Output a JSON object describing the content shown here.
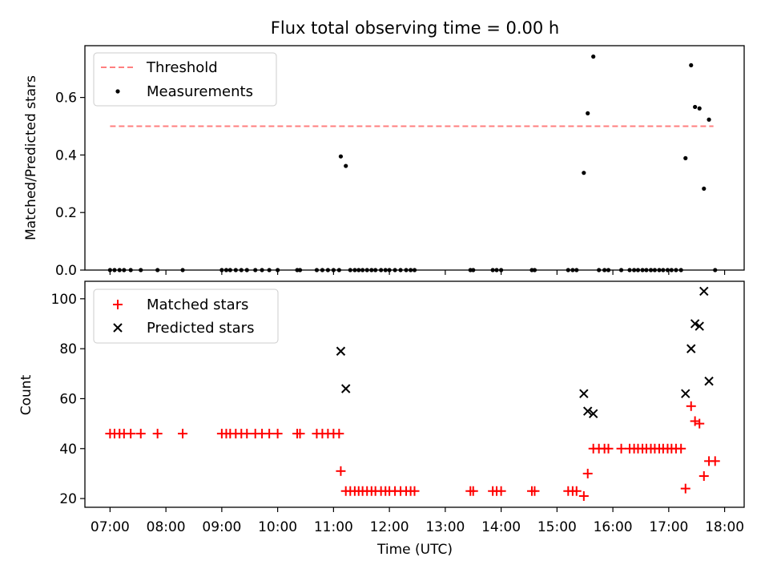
{
  "chart_data": [
    {
      "type": "scatter",
      "title": "Flux total observing time = 0.00 h",
      "xlabel": "",
      "ylabel": "Matched/Predicted stars",
      "ylim": [
        0,
        0.78
      ],
      "yticks": [
        0.0,
        0.2,
        0.4,
        0.6
      ],
      "ytick_labels": [
        "0.0",
        "0.2",
        "0.4",
        "0.6"
      ],
      "grid": false,
      "legend_position": "top-left",
      "threshold": {
        "name": "Threshold",
        "value": 0.5,
        "x_range": [
          7.0,
          17.8
        ],
        "color": "#ff7f7f"
      },
      "series": [
        {
          "name": "Measurements",
          "color": "#000000",
          "points": [
            [
              7.0,
              0
            ],
            [
              7.08,
              0
            ],
            [
              7.17,
              0
            ],
            [
              7.25,
              0
            ],
            [
              7.37,
              0
            ],
            [
              7.55,
              0
            ],
            [
              7.85,
              0
            ],
            [
              8.3,
              0
            ],
            [
              9.0,
              0
            ],
            [
              9.08,
              0
            ],
            [
              9.15,
              0
            ],
            [
              9.25,
              0
            ],
            [
              9.35,
              0
            ],
            [
              9.45,
              0
            ],
            [
              9.6,
              0
            ],
            [
              9.72,
              0
            ],
            [
              9.85,
              0
            ],
            [
              10.0,
              0
            ],
            [
              10.35,
              0
            ],
            [
              10.4,
              0
            ],
            [
              10.7,
              0
            ],
            [
              10.8,
              0
            ],
            [
              10.9,
              0
            ],
            [
              11.0,
              0
            ],
            [
              11.1,
              0
            ],
            [
              11.13,
              0.395
            ],
            [
              11.22,
              0.362
            ],
            [
              11.3,
              0
            ],
            [
              11.38,
              0
            ],
            [
              11.45,
              0
            ],
            [
              11.52,
              0
            ],
            [
              11.6,
              0
            ],
            [
              11.68,
              0
            ],
            [
              11.75,
              0
            ],
            [
              11.85,
              0
            ],
            [
              11.93,
              0
            ],
            [
              12.0,
              0
            ],
            [
              12.1,
              0
            ],
            [
              12.2,
              0
            ],
            [
              12.3,
              0
            ],
            [
              12.38,
              0
            ],
            [
              12.45,
              0
            ],
            [
              13.45,
              0
            ],
            [
              13.5,
              0
            ],
            [
              13.85,
              0
            ],
            [
              13.92,
              0
            ],
            [
              14.0,
              0
            ],
            [
              14.55,
              0
            ],
            [
              14.6,
              0
            ],
            [
              15.2,
              0
            ],
            [
              15.28,
              0
            ],
            [
              15.35,
              0
            ],
            [
              15.48,
              0.338
            ],
            [
              15.55,
              0.545
            ],
            [
              15.65,
              0.742
            ],
            [
              15.75,
              0
            ],
            [
              15.85,
              0
            ],
            [
              15.92,
              0
            ],
            [
              16.15,
              0
            ],
            [
              16.3,
              0
            ],
            [
              16.38,
              0
            ],
            [
              16.45,
              0
            ],
            [
              16.53,
              0
            ],
            [
              16.6,
              0
            ],
            [
              16.68,
              0
            ],
            [
              16.75,
              0
            ],
            [
              16.83,
              0
            ],
            [
              16.9,
              0
            ],
            [
              16.98,
              0
            ],
            [
              17.05,
              0
            ],
            [
              17.13,
              0
            ],
            [
              17.22,
              0
            ],
            [
              17.3,
              0.389
            ],
            [
              17.4,
              0.712
            ],
            [
              17.47,
              0.567
            ],
            [
              17.55,
              0.562
            ],
            [
              17.63,
              0.283
            ],
            [
              17.72,
              0.523
            ],
            [
              17.83,
              0
            ]
          ]
        }
      ]
    },
    {
      "type": "scatter",
      "title": "",
      "xlabel": "Time (UTC)",
      "ylabel": "Count",
      "ylim": [
        16.5,
        107
      ],
      "yticks": [
        20,
        40,
        60,
        80,
        100
      ],
      "ytick_labels": [
        "20",
        "40",
        "60",
        "80",
        "100"
      ],
      "xlim": [
        6.55,
        18.35
      ],
      "xticks": [
        7,
        8,
        9,
        10,
        11,
        12,
        13,
        14,
        15,
        16,
        17,
        18
      ],
      "xtick_labels": [
        "07:00",
        "08:00",
        "09:00",
        "10:00",
        "11:00",
        "12:00",
        "13:00",
        "14:00",
        "15:00",
        "16:00",
        "17:00",
        "18:00"
      ],
      "grid": false,
      "legend_position": "top-left",
      "series": [
        {
          "name": "Matched stars",
          "color": "#ff0000",
          "marker": "+",
          "points": [
            [
              7.0,
              46
            ],
            [
              7.08,
              46
            ],
            [
              7.17,
              46
            ],
            [
              7.25,
              46
            ],
            [
              7.37,
              46
            ],
            [
              7.55,
              46
            ],
            [
              7.85,
              46
            ],
            [
              8.3,
              46
            ],
            [
              9.0,
              46
            ],
            [
              9.08,
              46
            ],
            [
              9.15,
              46
            ],
            [
              9.25,
              46
            ],
            [
              9.35,
              46
            ],
            [
              9.45,
              46
            ],
            [
              9.6,
              46
            ],
            [
              9.72,
              46
            ],
            [
              9.85,
              46
            ],
            [
              10.0,
              46
            ],
            [
              10.35,
              46
            ],
            [
              10.4,
              46
            ],
            [
              10.7,
              46
            ],
            [
              10.8,
              46
            ],
            [
              10.9,
              46
            ],
            [
              11.0,
              46
            ],
            [
              11.1,
              46
            ],
            [
              11.13,
              31
            ],
            [
              11.22,
              23
            ],
            [
              11.3,
              23
            ],
            [
              11.38,
              23
            ],
            [
              11.45,
              23
            ],
            [
              11.52,
              23
            ],
            [
              11.6,
              23
            ],
            [
              11.68,
              23
            ],
            [
              11.75,
              23
            ],
            [
              11.85,
              23
            ],
            [
              11.93,
              23
            ],
            [
              12.0,
              23
            ],
            [
              12.1,
              23
            ],
            [
              12.2,
              23
            ],
            [
              12.3,
              23
            ],
            [
              12.38,
              23
            ],
            [
              12.45,
              23
            ],
            [
              13.45,
              23
            ],
            [
              13.5,
              23
            ],
            [
              13.85,
              23
            ],
            [
              13.92,
              23
            ],
            [
              14.0,
              23
            ],
            [
              14.55,
              23
            ],
            [
              14.6,
              23
            ],
            [
              15.2,
              23
            ],
            [
              15.28,
              23
            ],
            [
              15.35,
              23
            ],
            [
              15.48,
              21
            ],
            [
              15.55,
              30
            ],
            [
              15.65,
              40
            ],
            [
              15.75,
              40
            ],
            [
              15.85,
              40
            ],
            [
              15.92,
              40
            ],
            [
              16.15,
              40
            ],
            [
              16.3,
              40
            ],
            [
              16.38,
              40
            ],
            [
              16.45,
              40
            ],
            [
              16.53,
              40
            ],
            [
              16.6,
              40
            ],
            [
              16.68,
              40
            ],
            [
              16.75,
              40
            ],
            [
              16.83,
              40
            ],
            [
              16.9,
              40
            ],
            [
              16.98,
              40
            ],
            [
              17.05,
              40
            ],
            [
              17.13,
              40
            ],
            [
              17.22,
              40
            ],
            [
              17.3,
              24
            ],
            [
              17.4,
              57
            ],
            [
              17.47,
              51
            ],
            [
              17.55,
              50
            ],
            [
              17.63,
              29
            ],
            [
              17.72,
              35
            ],
            [
              17.83,
              35
            ]
          ]
        },
        {
          "name": "Predicted stars",
          "color": "#000000",
          "marker": "x",
          "points": [
            [
              11.13,
              79
            ],
            [
              11.22,
              64
            ],
            [
              15.48,
              62
            ],
            [
              15.55,
              55
            ],
            [
              15.65,
              54
            ],
            [
              17.3,
              62
            ],
            [
              17.4,
              80
            ],
            [
              17.47,
              90
            ],
            [
              17.55,
              89
            ],
            [
              17.63,
              103
            ],
            [
              17.72,
              67
            ]
          ]
        }
      ]
    }
  ]
}
